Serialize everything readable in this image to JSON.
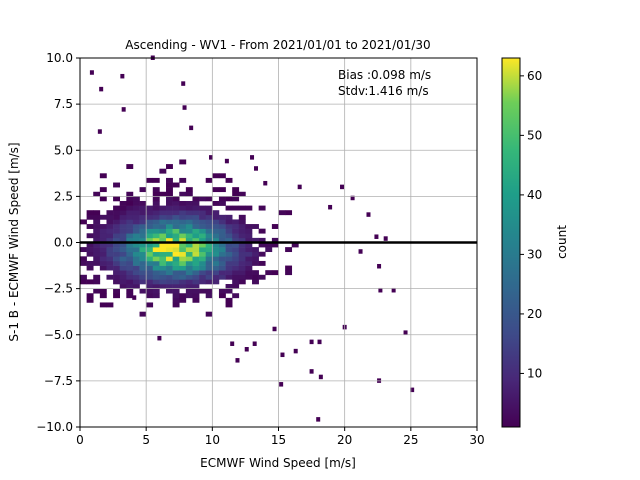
{
  "chart_data": {
    "type": "heatmap",
    "title": "Ascending - WV1 - From 2021/01/01 to 2021/01/30",
    "xlabel": "ECMWF Wind Speed [m/s]",
    "ylabel": "S-1 B - ECMWF Wind Speed [m/s]",
    "xlim": [
      0,
      30
    ],
    "ylim": [
      -10,
      10
    ],
    "xticks": [
      0,
      5,
      10,
      15,
      20,
      25,
      30
    ],
    "xtick_labels": [
      "0",
      "5",
      "10",
      "15",
      "20",
      "25",
      "30"
    ],
    "yticks": [
      -10,
      -7.5,
      -5,
      -2.5,
      0,
      2.5,
      5,
      7.5,
      10
    ],
    "ytick_labels": [
      "−10.0",
      "−7.5",
      "−5.0",
      "−2.5",
      "0.0",
      "2.5",
      "5.0",
      "7.5",
      "10.0"
    ],
    "grid": true,
    "reference_line_y": 0,
    "annotation": {
      "bias": "Bias :0.098 m/s",
      "stdv": "Stdv:1.416 m/s"
    },
    "colorbar": {
      "label": "count",
      "colormap": "viridis",
      "range": [
        1,
        63
      ],
      "ticks": [
        10,
        20,
        30,
        40,
        50,
        60
      ],
      "tick_labels": [
        "10",
        "20",
        "30",
        "40",
        "50",
        "60"
      ]
    },
    "density_model": {
      "peak_count": 62,
      "core": {
        "center_x": 7.2,
        "center_y": -0.3,
        "sigma_x": 2.7,
        "sigma_y": 1.0
      },
      "halo": {
        "center_x": 6.5,
        "center_y": 0.2,
        "sigma_x": 4.6,
        "sigma_y": 2.0,
        "weight": 0.12
      }
    },
    "outlier_points": [
      [
        0.9,
        9.2
      ],
      [
        3.2,
        9.0
      ],
      [
        5.5,
        10.0
      ],
      [
        1.6,
        8.3
      ],
      [
        7.8,
        8.6
      ],
      [
        3.3,
        7.2
      ],
      [
        7.9,
        7.3
      ],
      [
        1.5,
        6.0
      ],
      [
        8.4,
        6.2
      ],
      [
        9.9,
        4.6
      ],
      [
        11.1,
        4.4
      ],
      [
        13.0,
        4.6
      ],
      [
        14.0,
        3.2
      ],
      [
        13.3,
        4.0
      ],
      [
        16.6,
        3.0
      ],
      [
        18.9,
        1.9
      ],
      [
        20.6,
        2.4
      ],
      [
        21.8,
        1.5
      ],
      [
        19.8,
        3.0
      ],
      [
        22.4,
        0.3
      ],
      [
        23.1,
        0.2
      ],
      [
        21.2,
        -0.5
      ],
      [
        22.6,
        -1.3
      ],
      [
        22.7,
        -2.6
      ],
      [
        23.7,
        -2.6
      ],
      [
        24.6,
        -4.9
      ],
      [
        25.1,
        -8.0
      ],
      [
        22.6,
        -7.5
      ],
      [
        20.0,
        -4.6
      ],
      [
        17.5,
        -5.4
      ],
      [
        18.1,
        -5.4
      ],
      [
        17.5,
        -7.0
      ],
      [
        18.2,
        -7.3
      ],
      [
        16.3,
        -5.9
      ],
      [
        15.3,
        -6.1
      ],
      [
        13.2,
        -5.5
      ],
      [
        12.6,
        -5.8
      ],
      [
        11.5,
        -5.5
      ],
      [
        11.9,
        -6.4
      ],
      [
        15.2,
        -7.7
      ],
      [
        18.0,
        -9.6
      ],
      [
        6.0,
        -5.2
      ],
      [
        4.1,
        -3.0
      ],
      [
        14.7,
        -4.7
      ]
    ]
  }
}
